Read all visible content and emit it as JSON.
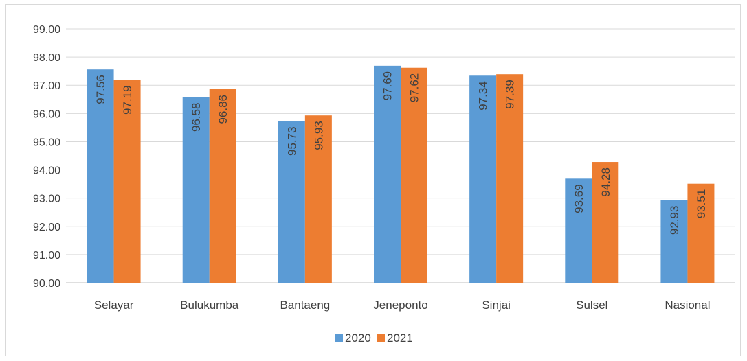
{
  "chart_data": {
    "type": "bar",
    "title": "",
    "xlabel": "",
    "ylabel": "",
    "ylim": [
      90,
      99
    ],
    "y_ticks": [
      "99.00",
      "98.00",
      "97.00",
      "96.00",
      "95.00",
      "94.00",
      "93.00",
      "92.00",
      "91.00",
      "90.00"
    ],
    "grid": true,
    "legend_position": "bottom",
    "categories": [
      "Selayar",
      "Bulukumba",
      "Bantaeng",
      "Jeneponto",
      "Sinjai",
      "Sulsel",
      "Nasional"
    ],
    "series": [
      {
        "name": "2020",
        "color": "#5b9bd5",
        "values": [
          97.56,
          96.58,
          95.73,
          97.69,
          97.34,
          93.69,
          92.93
        ]
      },
      {
        "name": "2021",
        "color": "#ed7d31",
        "values": [
          97.19,
          96.86,
          95.93,
          97.62,
          97.39,
          94.28,
          93.51
        ]
      }
    ]
  }
}
